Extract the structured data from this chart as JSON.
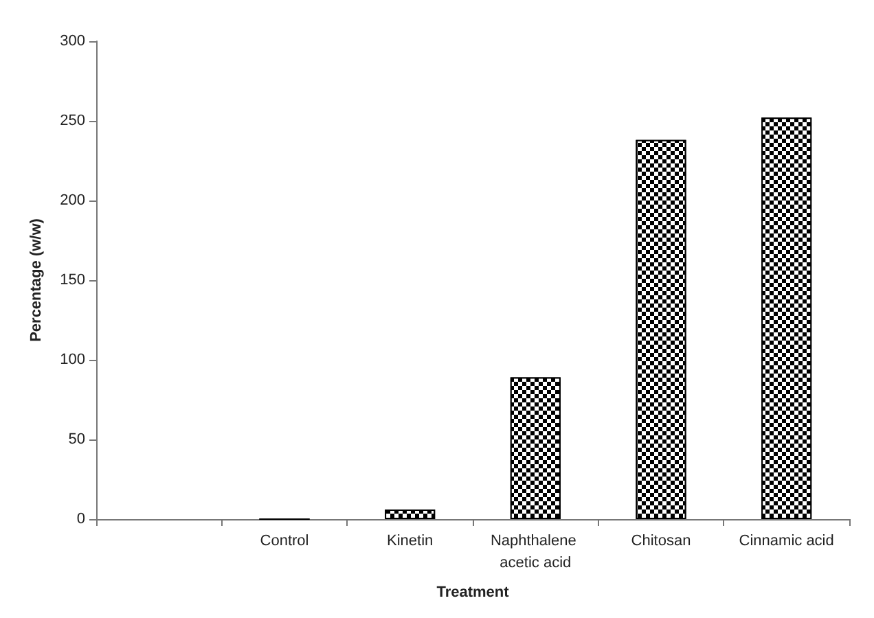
{
  "chart_data": {
    "type": "bar",
    "xlabel": "Treatment",
    "ylabel": "Percentage (w/w)",
    "categories": [
      null,
      "Control",
      "Kinetin",
      "Naphthalene acetic acid",
      "Chitosan",
      "Cinnamic acid"
    ],
    "values": [
      null,
      0,
      6,
      89,
      238,
      252
    ],
    "color": "#000000",
    "ylim": [
      0,
      300
    ],
    "yticks": [
      0,
      50,
      100,
      150,
      200,
      250,
      300
    ],
    "grid": false
  }
}
